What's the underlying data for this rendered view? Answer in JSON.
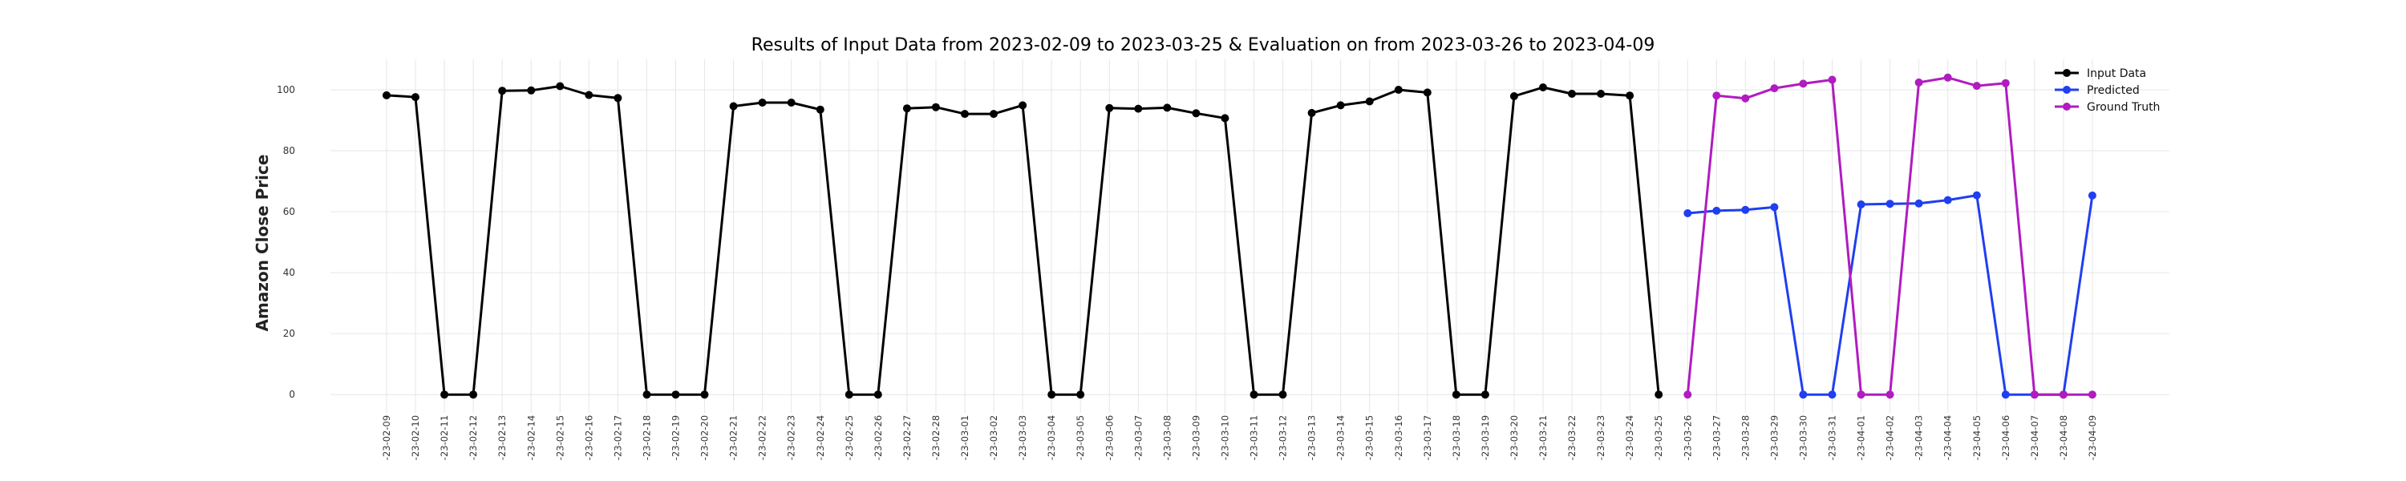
{
  "chart_data": {
    "type": "line",
    "title": "Results of Input Data from 2023-02-09 to 2023-03-25 & Evaluation on from 2023-03-26 to 2023-04-09",
    "xlabel": "",
    "ylabel": "Amazon Close Price",
    "ylim": [
      -6,
      110
    ],
    "yticks": [
      0,
      20,
      40,
      60,
      80,
      100
    ],
    "grid": true,
    "legend_position": "top-right",
    "categories": [
      "2023-02-09",
      "2023-02-10",
      "2023-02-11",
      "2023-02-12",
      "2023-02-13",
      "2023-02-14",
      "2023-02-15",
      "2023-02-16",
      "2023-02-17",
      "2023-02-18",
      "2023-02-19",
      "2023-02-20",
      "2023-02-21",
      "2023-02-22",
      "2023-02-23",
      "2023-02-24",
      "2023-02-25",
      "2023-02-26",
      "2023-02-27",
      "2023-02-28",
      "2023-03-01",
      "2023-03-02",
      "2023-03-03",
      "2023-03-04",
      "2023-03-05",
      "2023-03-06",
      "2023-03-07",
      "2023-03-08",
      "2023-03-09",
      "2023-03-10",
      "2023-03-11",
      "2023-03-12",
      "2023-03-13",
      "2023-03-14",
      "2023-03-15",
      "2023-03-16",
      "2023-03-17",
      "2023-03-18",
      "2023-03-19",
      "2023-03-20",
      "2023-03-21",
      "2023-03-22",
      "2023-03-23",
      "2023-03-24",
      "2023-03-25",
      "2023-03-26",
      "2023-03-27",
      "2023-03-28",
      "2023-03-29",
      "2023-03-30",
      "2023-03-31",
      "2023-04-01",
      "2023-04-02",
      "2023-04-03",
      "2023-04-04",
      "2023-04-05",
      "2023-04-06",
      "2023-04-07",
      "2023-04-08",
      "2023-04-09"
    ],
    "tick_labels": [
      "-23-02-09",
      "-23-02-10",
      "-23-02-11",
      "-23-02-12",
      "-23-02-13",
      "-23-02-14",
      "-23-02-15",
      "-23-02-16",
      "-23-02-17",
      "-23-02-18",
      "-23-02-19",
      "-23-02-20",
      "-23-02-21",
      "-23-02-22",
      "-23-02-23",
      "-23-02-24",
      "-23-02-25",
      "-23-02-26",
      "-23-02-27",
      "-23-02-28",
      "-23-03-01",
      "-23-03-02",
      "-23-03-03",
      "-23-03-04",
      "-23-03-05",
      "-23-03-06",
      "-23-03-07",
      "-23-03-08",
      "-23-03-09",
      "-23-03-10",
      "-23-03-11",
      "-23-03-12",
      "-23-03-13",
      "-23-03-14",
      "-23-03-15",
      "-23-03-16",
      "-23-03-17",
      "-23-03-18",
      "-23-03-19",
      "-23-03-20",
      "-23-03-21",
      "-23-03-22",
      "-23-03-23",
      "-23-03-24",
      "-23-03-25",
      "-23-03-26",
      "-23-03-27",
      "-23-03-28",
      "-23-03-29",
      "-23-03-30",
      "-23-03-31",
      "-23-04-01",
      "-23-04-02",
      "-23-04-03",
      "-23-04-04",
      "-23-04-05",
      "-23-04-06",
      "-23-04-07",
      "-23-04-08",
      "-23-04-09"
    ],
    "series": [
      {
        "name": "Input Data",
        "color": "#000000",
        "x": [
          "2023-02-09",
          "2023-02-10",
          "2023-02-11",
          "2023-02-12",
          "2023-02-13",
          "2023-02-14",
          "2023-02-15",
          "2023-02-16",
          "2023-02-17",
          "2023-02-18",
          "2023-02-19",
          "2023-02-20",
          "2023-02-21",
          "2023-02-22",
          "2023-02-23",
          "2023-02-24",
          "2023-02-25",
          "2023-02-26",
          "2023-02-27",
          "2023-02-28",
          "2023-03-01",
          "2023-03-02",
          "2023-03-03",
          "2023-03-04",
          "2023-03-05",
          "2023-03-06",
          "2023-03-07",
          "2023-03-08",
          "2023-03-09",
          "2023-03-10",
          "2023-03-11",
          "2023-03-12",
          "2023-03-13",
          "2023-03-14",
          "2023-03-15",
          "2023-03-16",
          "2023-03-17",
          "2023-03-18",
          "2023-03-19",
          "2023-03-20",
          "2023-03-21",
          "2023-03-22",
          "2023-03-23",
          "2023-03-24",
          "2023-03-25"
        ],
        "values": [
          98.2,
          97.6,
          0,
          0,
          99.7,
          99.8,
          101.2,
          98.3,
          97.3,
          0,
          0,
          0,
          94.6,
          95.8,
          95.8,
          93.5,
          0,
          0,
          93.9,
          94.3,
          92.1,
          92.1,
          94.9,
          0,
          0,
          94.0,
          93.8,
          94.1,
          92.3,
          90.7,
          0,
          0,
          92.4,
          94.9,
          96.2,
          100.0,
          99.1,
          0,
          0,
          97.9,
          100.8,
          98.7,
          98.7,
          98.1,
          0
        ]
      },
      {
        "name": "Predicted",
        "color": "#1f3ff0",
        "x": [
          "2023-03-26",
          "2023-03-27",
          "2023-03-28",
          "2023-03-29",
          "2023-03-30",
          "2023-03-31",
          "2023-04-01",
          "2023-04-02",
          "2023-04-03",
          "2023-04-04",
          "2023-04-05",
          "2023-04-06",
          "2023-04-07",
          "2023-04-08",
          "2023-04-09"
        ],
        "values": [
          59.5,
          60.3,
          60.6,
          61.5,
          0,
          0,
          62.4,
          62.6,
          62.7,
          63.8,
          65.4,
          0,
          0,
          0,
          65.3
        ]
      },
      {
        "name": "Ground Truth",
        "color": "#b01cc0",
        "x": [
          "2023-03-26",
          "2023-03-27",
          "2023-03-28",
          "2023-03-29",
          "2023-03-30",
          "2023-03-31",
          "2023-04-01",
          "2023-04-02",
          "2023-04-03",
          "2023-04-04",
          "2023-04-05",
          "2023-04-06",
          "2023-04-07",
          "2023-04-08",
          "2023-04-09"
        ],
        "values": [
          0,
          98.1,
          97.2,
          100.5,
          102.0,
          103.3,
          0,
          0,
          102.4,
          104.0,
          101.3,
          102.2,
          0,
          0,
          0
        ]
      }
    ]
  }
}
